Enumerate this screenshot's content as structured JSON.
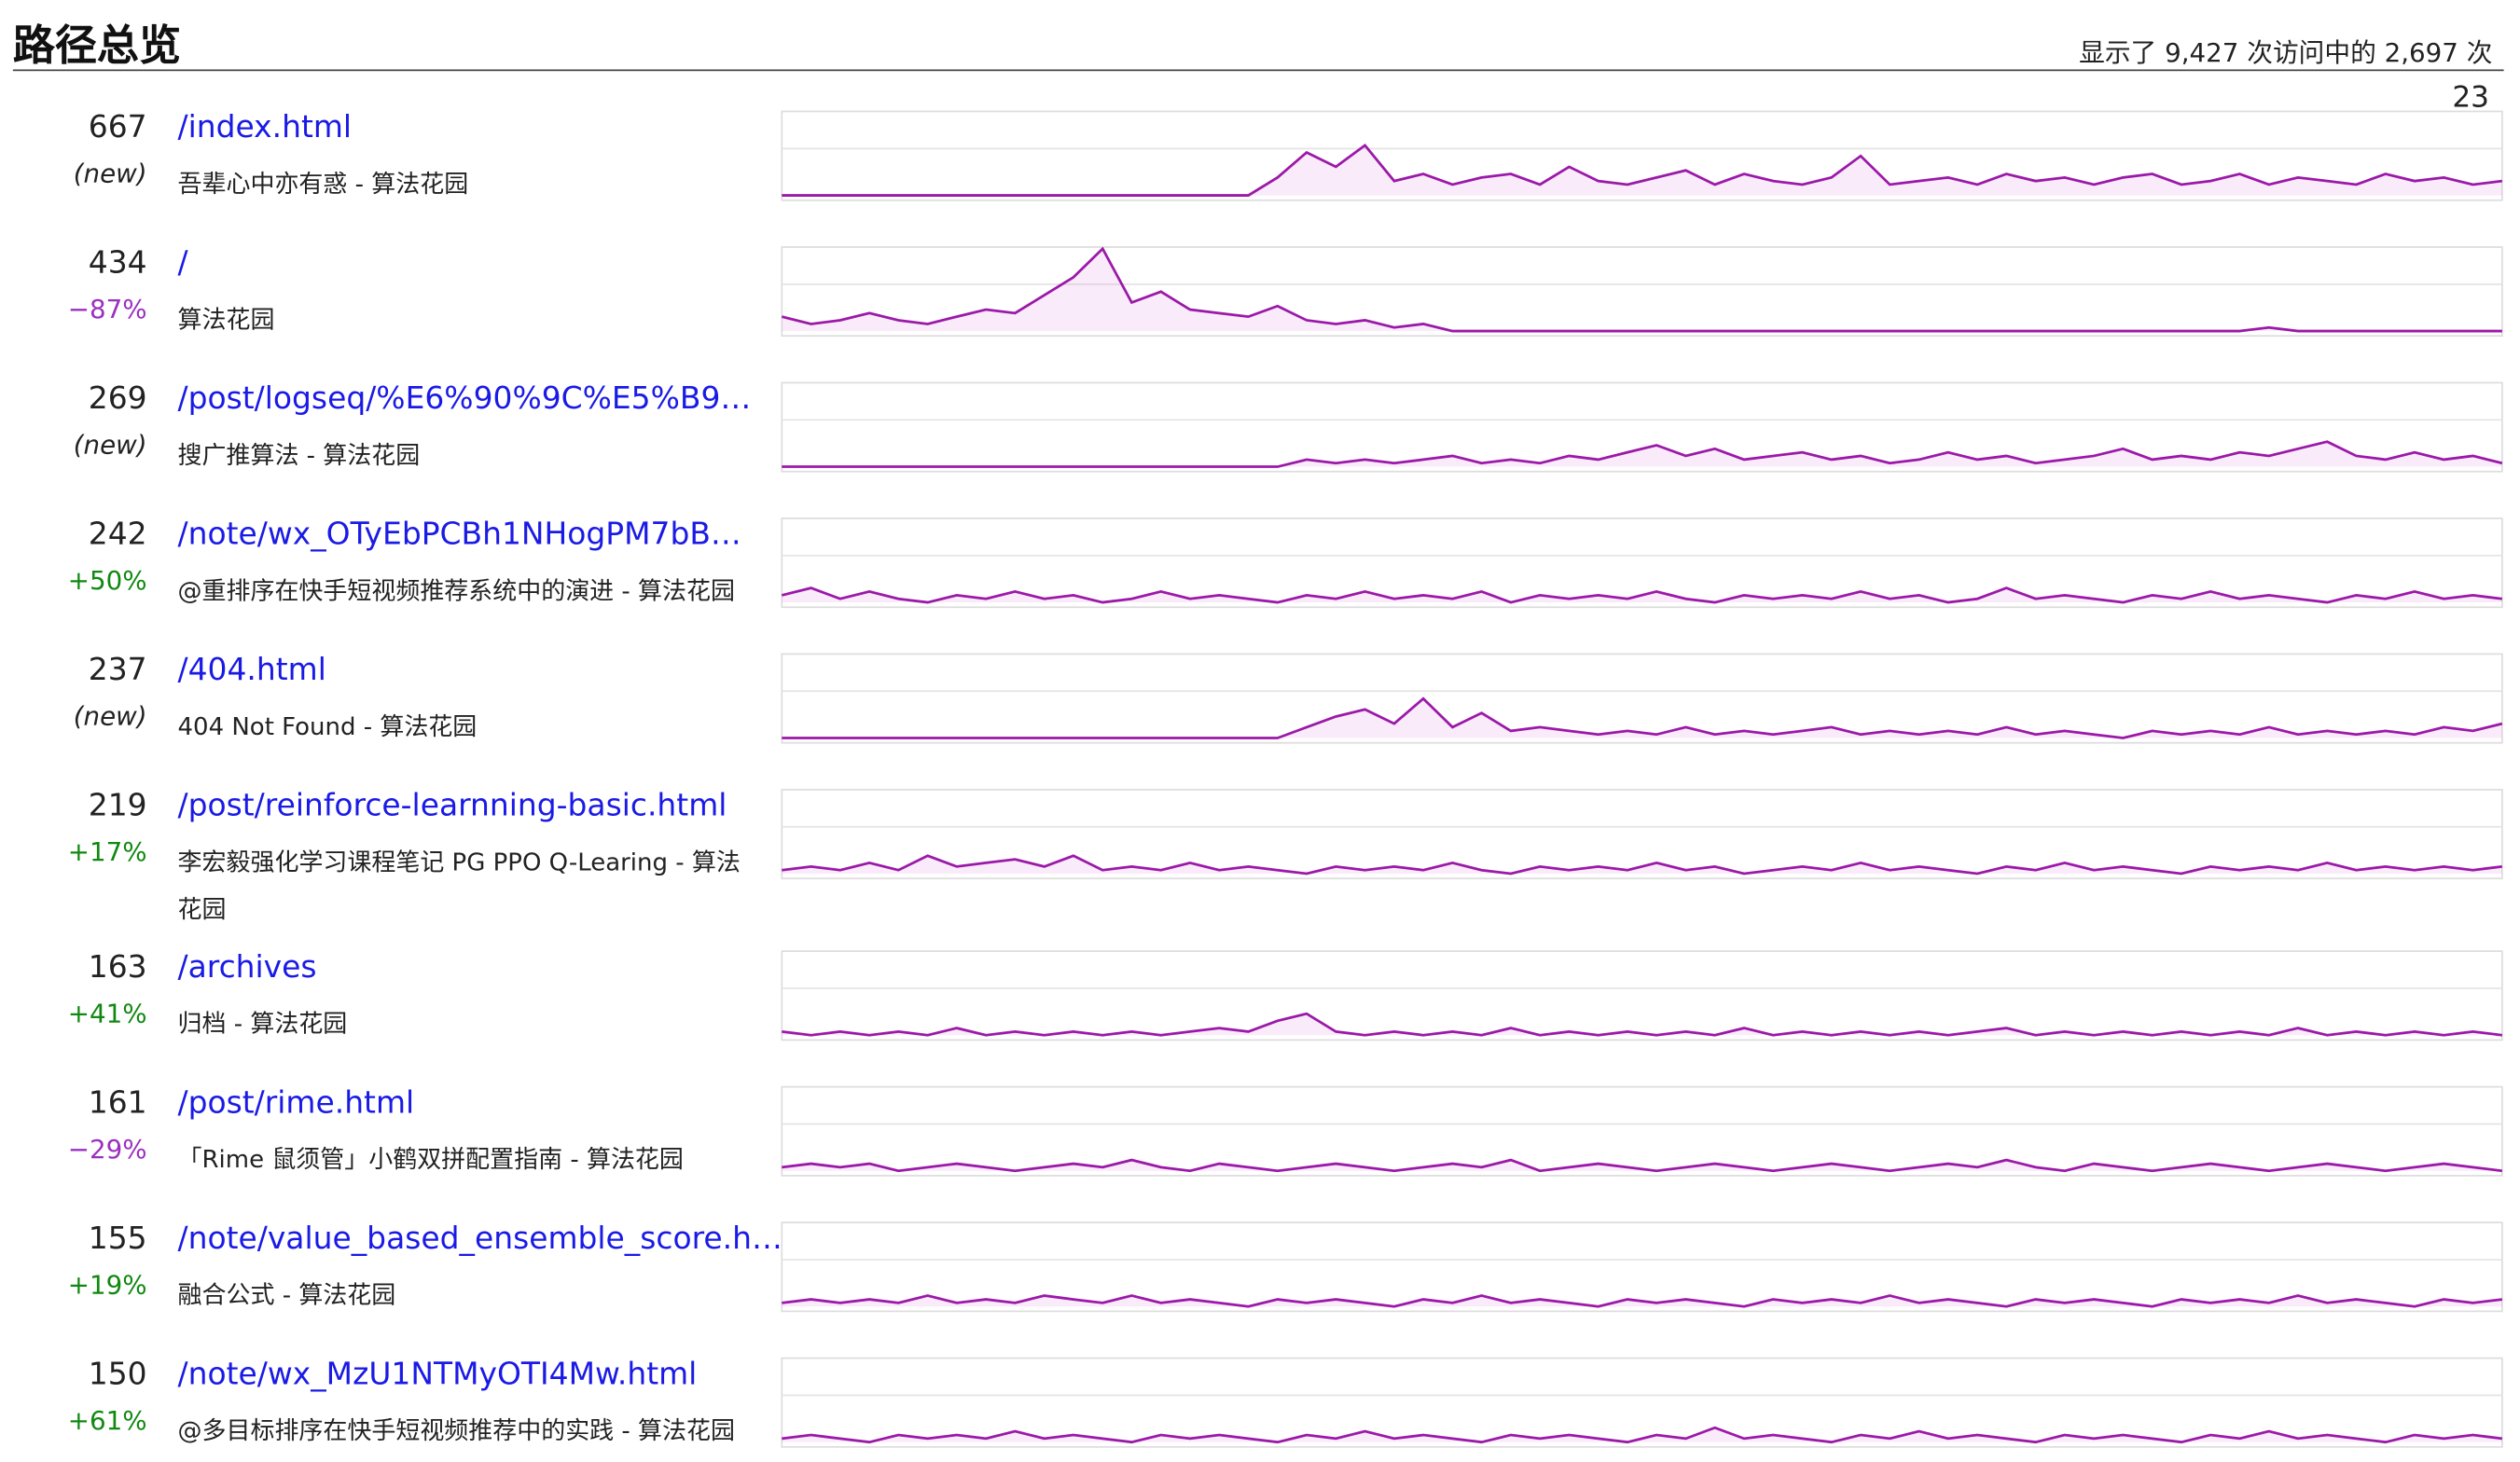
{
  "header": {
    "title": "路径总览",
    "summary": "显示了 9,427 次访问中的 2,697 次"
  },
  "scale_max": 23,
  "rows": [
    {
      "count": "667",
      "change": "(new)",
      "path": "/index.html",
      "title": "吾辈心中亦有惑 - 算法花园",
      "spark": [
        0,
        0,
        0,
        0,
        0,
        0,
        0,
        0,
        0,
        0,
        0,
        0,
        0,
        0,
        0,
        0,
        0,
        5,
        12,
        8,
        14,
        4,
        6,
        3,
        5,
        6,
        3,
        8,
        4,
        3,
        5,
        7,
        3,
        6,
        4,
        3,
        5,
        11,
        3,
        4,
        5,
        3,
        6,
        4,
        5,
        3,
        5,
        6,
        3,
        4,
        6,
        3,
        5,
        4,
        3,
        6,
        4,
        5,
        3,
        4
      ]
    },
    {
      "count": "434",
      "change": "−87%",
      "path": "/",
      "title": "算法花园",
      "spark": [
        4,
        2,
        3,
        5,
        3,
        2,
        4,
        6,
        5,
        10,
        15,
        23,
        8,
        11,
        6,
        5,
        4,
        7,
        3,
        2,
        3,
        1,
        2,
        0,
        0,
        0,
        0,
        0,
        0,
        0,
        0,
        0,
        0,
        0,
        0,
        0,
        0,
        0,
        0,
        0,
        0,
        0,
        0,
        0,
        0,
        0,
        0,
        0,
        0,
        0,
        0,
        1,
        0,
        0,
        0,
        0,
        0,
        0,
        0,
        0
      ]
    },
    {
      "count": "269",
      "change": "(new)",
      "path": "/post/logseq/%E6%90%9C%E5%B9…",
      "title": "搜广推算法 - 算法花园",
      "spark": [
        0,
        0,
        0,
        0,
        0,
        0,
        0,
        0,
        0,
        0,
        0,
        0,
        0,
        0,
        0,
        0,
        0,
        0,
        2,
        1,
        2,
        1,
        2,
        3,
        1,
        2,
        1,
        3,
        2,
        4,
        6,
        3,
        5,
        2,
        3,
        4,
        2,
        3,
        1,
        2,
        4,
        2,
        3,
        1,
        2,
        3,
        5,
        2,
        3,
        2,
        4,
        3,
        5,
        7,
        3,
        2,
        4,
        2,
        3,
        1
      ]
    },
    {
      "count": "242",
      "change": "+50%",
      "path": "/note/wx_OTyEbPCBh1NHogPM7bB…",
      "title": "@重排序在快手短视频推荐系统中的演进 - 算法花园",
      "spark": [
        2,
        4,
        1,
        3,
        1,
        0,
        2,
        1,
        3,
        1,
        2,
        0,
        1,
        3,
        1,
        2,
        1,
        0,
        2,
        1,
        3,
        1,
        2,
        1,
        3,
        0,
        2,
        1,
        2,
        1,
        3,
        1,
        0,
        2,
        1,
        2,
        1,
        3,
        1,
        2,
        0,
        1,
        4,
        1,
        2,
        1,
        0,
        2,
        1,
        3,
        1,
        2,
        1,
        0,
        2,
        1,
        3,
        1,
        2,
        1
      ]
    },
    {
      "count": "237",
      "change": "(new)",
      "path": "/404.html",
      "title": "404 Not Found - 算法花园",
      "spark": [
        0,
        0,
        0,
        0,
        0,
        0,
        0,
        0,
        0,
        0,
        0,
        0,
        0,
        0,
        0,
        0,
        0,
        0,
        3,
        6,
        8,
        4,
        11,
        3,
        7,
        2,
        3,
        2,
        1,
        2,
        1,
        3,
        1,
        2,
        1,
        2,
        3,
        1,
        2,
        1,
        2,
        1,
        3,
        1,
        2,
        1,
        0,
        2,
        1,
        2,
        1,
        3,
        1,
        2,
        1,
        2,
        1,
        3,
        2,
        4
      ]
    },
    {
      "count": "219",
      "change": "+17%",
      "path": "/post/reinforce-learnning-basic.html",
      "title": "李宏毅强化学习课程笔记 PG PPO Q-Learing - 算法花园",
      "spark": [
        1,
        2,
        1,
        3,
        1,
        5,
        2,
        3,
        4,
        2,
        5,
        1,
        2,
        1,
        3,
        1,
        2,
        1,
        0,
        2,
        1,
        2,
        1,
        3,
        1,
        0,
        2,
        1,
        2,
        1,
        3,
        1,
        2,
        0,
        1,
        2,
        1,
        3,
        1,
        2,
        1,
        0,
        2,
        1,
        3,
        1,
        2,
        1,
        0,
        2,
        1,
        2,
        1,
        3,
        1,
        2,
        1,
        2,
        1,
        2
      ]
    },
    {
      "count": "163",
      "change": "+41%",
      "path": "/archives",
      "title": "归档 - 算法花园",
      "spark": [
        1,
        0,
        1,
        0,
        1,
        0,
        2,
        0,
        1,
        0,
        1,
        0,
        1,
        0,
        1,
        2,
        1,
        4,
        6,
        1,
        0,
        1,
        0,
        1,
        0,
        2,
        0,
        1,
        0,
        1,
        0,
        1,
        0,
        2,
        0,
        1,
        0,
        1,
        0,
        1,
        0,
        1,
        2,
        0,
        1,
        0,
        1,
        0,
        1,
        0,
        1,
        0,
        2,
        0,
        1,
        0,
        1,
        0,
        1,
        0
      ]
    },
    {
      "count": "161",
      "change": "−29%",
      "path": "/post/rime.html",
      "title": "「Rime 鼠须管」小鹤双拼配置指南 - 算法花园",
      "spark": [
        1,
        2,
        1,
        2,
        0,
        1,
        2,
        1,
        0,
        1,
        2,
        1,
        3,
        1,
        0,
        2,
        1,
        0,
        1,
        2,
        1,
        0,
        1,
        2,
        1,
        3,
        0,
        1,
        2,
        1,
        0,
        1,
        2,
        1,
        0,
        1,
        2,
        1,
        0,
        1,
        2,
        1,
        3,
        1,
        0,
        2,
        1,
        0,
        1,
        2,
        1,
        0,
        1,
        2,
        1,
        0,
        1,
        2,
        1,
        0
      ]
    },
    {
      "count": "155",
      "change": "+19%",
      "path": "/note/value_based_ensemble_score.h…",
      "title": "融合公式 - 算法花园",
      "spark": [
        1,
        2,
        1,
        2,
        1,
        3,
        1,
        2,
        1,
        3,
        2,
        1,
        3,
        1,
        2,
        1,
        0,
        2,
        1,
        2,
        1,
        0,
        2,
        1,
        3,
        1,
        2,
        1,
        0,
        2,
        1,
        2,
        1,
        0,
        2,
        1,
        2,
        1,
        3,
        1,
        2,
        1,
        0,
        2,
        1,
        2,
        1,
        0,
        2,
        1,
        2,
        1,
        3,
        1,
        2,
        1,
        0,
        2,
        1,
        2
      ]
    },
    {
      "count": "150",
      "change": "+61%",
      "path": "/note/wx_MzU1NTMyOTI4Mw.html",
      "title": "@多目标排序在快手短视频推荐中的实践 - 算法花园",
      "spark": [
        1,
        2,
        1,
        0,
        2,
        1,
        2,
        1,
        3,
        1,
        2,
        1,
        0,
        2,
        1,
        2,
        1,
        0,
        2,
        1,
        3,
        1,
        2,
        1,
        0,
        2,
        1,
        2,
        1,
        0,
        2,
        1,
        4,
        1,
        2,
        1,
        0,
        2,
        1,
        3,
        1,
        2,
        1,
        0,
        2,
        1,
        2,
        1,
        0,
        2,
        1,
        3,
        1,
        2,
        1,
        0,
        2,
        1,
        2,
        1
      ]
    }
  ]
}
